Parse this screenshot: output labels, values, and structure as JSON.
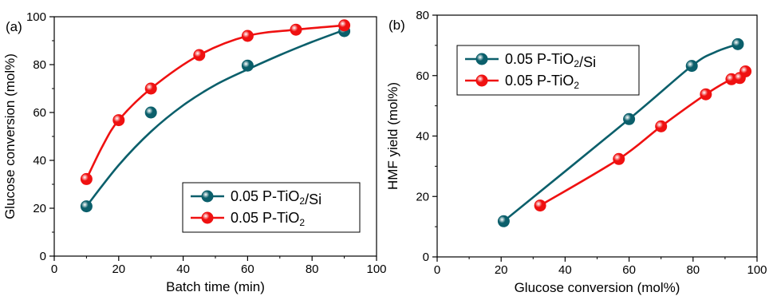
{
  "colors": {
    "teal": "#0b5f6b",
    "red": "#ef1111"
  },
  "chart_data": [
    {
      "panel_label": "(a)",
      "type": "scatter",
      "xlabel": "Batch time (min)",
      "ylabel": "Glucose conversion (mol%)",
      "xlim": [
        0,
        100
      ],
      "ylim": [
        0,
        100
      ],
      "xticks": [
        "0",
        "20",
        "40",
        "60",
        "80",
        "100"
      ],
      "yticks": [
        "0",
        "20",
        "40",
        "60",
        "80",
        "100"
      ],
      "legend": "bottom-right",
      "series": [
        {
          "name": "0.05 P-TiO₂/Si",
          "color": "#0b5f6b",
          "x": [
            10,
            30,
            60,
            90
          ],
          "y": [
            20.8,
            60,
            79.6,
            94
          ],
          "fit": [
            [
              10,
              20.8
            ],
            [
              20,
              38
            ],
            [
              30,
              52
            ],
            [
              40,
              63
            ],
            [
              50,
              71.5
            ],
            [
              60,
              78
            ],
            [
              70,
              84
            ],
            [
              80,
              89.5
            ],
            [
              90,
              94.5
            ]
          ]
        },
        {
          "name": "0.05 P-TiO₂",
          "color": "#ef1111",
          "x": [
            10,
            20,
            30,
            45,
            60,
            75,
            90
          ],
          "y": [
            32.2,
            56.8,
            70,
            84,
            92,
            94.6,
            96.4
          ],
          "fit": [
            [
              10,
              32.2
            ],
            [
              15,
              46
            ],
            [
              20,
              56.8
            ],
            [
              30,
              70
            ],
            [
              45,
              84
            ],
            [
              60,
              92
            ],
            [
              75,
              94.6
            ],
            [
              90,
              96.4
            ]
          ]
        }
      ]
    },
    {
      "panel_label": "(b)",
      "type": "line",
      "xlabel": "Glucose conversion (mol%)",
      "ylabel": "HMF yield (mol%)",
      "xlim": [
        0,
        100
      ],
      "ylim": [
        0,
        80
      ],
      "xticks": [
        "0",
        "20",
        "40",
        "60",
        "80",
        "100"
      ],
      "yticks": [
        "0",
        "20",
        "40",
        "60",
        "80"
      ],
      "legend": "top-left",
      "series": [
        {
          "name": "0.05 P-TiO₂/Si",
          "color": "#0b5f6b",
          "x": [
            20.8,
            60,
            79.6,
            94
          ],
          "y": [
            11.8,
            45.6,
            63.2,
            70.4
          ],
          "fit": [
            [
              20.8,
              11.8
            ],
            [
              60,
              45.6
            ],
            [
              79.6,
              63.2
            ],
            [
              87,
              67.8
            ],
            [
              94,
              70.4
            ]
          ]
        },
        {
          "name": "0.05 P-TiO₂",
          "color": "#ef1111",
          "x": [
            32.2,
            56.8,
            70,
            84,
            92,
            94.6,
            96.4
          ],
          "y": [
            17,
            32.4,
            43.2,
            53.8,
            58.8,
            59.2,
            61.4
          ],
          "fit": [
            [
              32.2,
              17
            ],
            [
              56.8,
              32.4
            ],
            [
              70,
              43.2
            ],
            [
              84,
              53.8
            ],
            [
              92,
              58.8
            ],
            [
              94.6,
              59.2
            ],
            [
              96.4,
              61.4
            ]
          ]
        }
      ]
    }
  ]
}
